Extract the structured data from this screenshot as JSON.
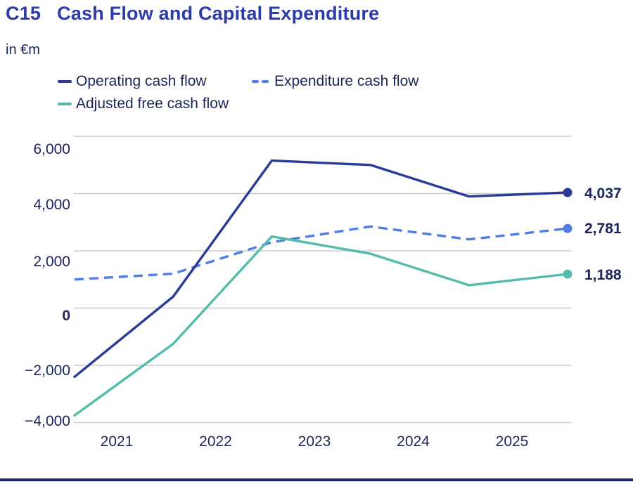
{
  "header": {
    "code": "C15",
    "title": "Cash Flow and Capital Expenditure",
    "unit": "in €m"
  },
  "chart_data": {
    "type": "line",
    "title": "C15 Cash Flow and Capital Expenditure",
    "unit": "€m",
    "x_tick_labels": [
      "2021",
      "2022",
      "2023",
      "2024",
      "2025"
    ],
    "y_ticks": [
      6000,
      4000,
      2000,
      0,
      -2000,
      -4000
    ],
    "y_tick_labels": [
      "6,000",
      "4,000",
      "2,000",
      "0",
      "−2,000",
      "−4,000"
    ],
    "ylim": [
      -4000,
      6000
    ],
    "grid": "horizontal",
    "legend_position": "top-left",
    "series": [
      {
        "name": "Operating cash flow",
        "line_style": "solid",
        "color": "#2A3B97",
        "values": [
          -2400,
          400,
          5150,
          5000,
          3900,
          4037
        ],
        "end_label": "4,037"
      },
      {
        "name": "Expenditure cash flow",
        "line_style": "dashed",
        "color": "#4F7EE6",
        "values": [
          1000,
          1200,
          2300,
          2850,
          2400,
          2781
        ],
        "end_label": "2,781"
      },
      {
        "name": "Adjusted free cash flow",
        "line_style": "solid",
        "color": "#55BCAB",
        "values": [
          -3750,
          -1250,
          2500,
          1900,
          800,
          1188
        ],
        "end_label": "1,188"
      }
    ],
    "colors": {
      "grid": "#CBCBCB",
      "text": "#1A2559",
      "title": "#2B3CA8",
      "bottom_rule": "#1A2466"
    }
  }
}
